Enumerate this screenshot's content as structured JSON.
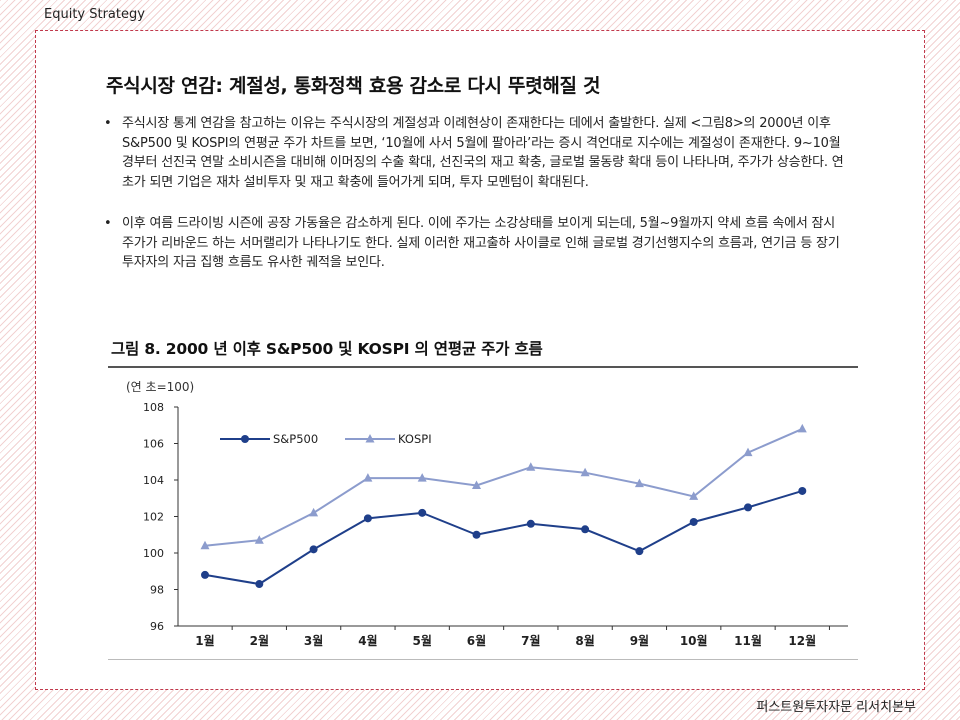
{
  "header": {
    "section": "Equity Strategy"
  },
  "footer": {
    "source": "퍼스트원투자자문 리서치본부"
  },
  "doc": {
    "title": "주식시장 연감: 계절성, 통화정책 효용 감소로 다시 뚜렷해질 것",
    "bullet_glyph": "•",
    "bullets": [
      "주식시장 통계 연감을 참고하는 이유는 주식시장의 계절성과 이례현상이 존재한다는 데에서 출발한다. 실제 <그림8>의 2000년 이후 S&P500 및 KOSPI의 연평균 주가 차트를 보면, ‘10월에 사서 5월에 팔아라’라는 증시 격언대로 지수에는 계절성이 존재한다. 9~10월경부터 선진국 연말 소비시즌을 대비해 이머징의 수출 확대, 선진국의 재고 확충, 글로벌 물동량 확대 등이 나타나며, 주가가 상승한다. 연초가 되면 기업은 재차 설비투자 및 재고 확충에 들어가게 되며, 투자 모멘텀이 확대된다.",
      "이후 여름 드라이빙 시즌에 공장 가동율은 감소하게 된다. 이에 주가는 소강상태를 보이게 되는데, 5월~9월까지 약세 흐름 속에서 잠시 주가가 리바운드 하는 서머랠리가 나타나기도 한다. 실제 이러한 재고출하 사이클로 인해 글로벌 경기선행지수의 흐름과, 연기금 등 장기 투자자의 자금 집행 흐름도 유사한 궤적을 보인다."
    ]
  },
  "figure": {
    "title": "그림 8. 2000 년 이후 S&P500 및 KOSPI 의 연평균 주가 흐름"
  },
  "chart_data": {
    "type": "line",
    "title": "그림 8. 2000 년 이후 S&P500 및 KOSPI 의 연평균 주가 흐름",
    "unit_label": "(연 초=100)",
    "categories": [
      "1월",
      "2월",
      "3월",
      "4월",
      "5월",
      "6월",
      "7월",
      "8월",
      "9월",
      "10월",
      "11월",
      "12월"
    ],
    "ylim": [
      96,
      108
    ],
    "yticks": [
      96,
      98,
      100,
      102,
      104,
      106,
      108
    ],
    "grid": false,
    "legend_position": "top-left",
    "series": [
      {
        "name": "S&P500",
        "marker": "circle",
        "color": "#1f3f8a",
        "values": [
          98.8,
          98.3,
          100.2,
          101.9,
          102.2,
          101.0,
          101.6,
          101.3,
          100.1,
          101.7,
          102.5,
          103.4
        ]
      },
      {
        "name": "KOSPI",
        "marker": "triangle",
        "color": "#8c9ccd",
        "values": [
          100.4,
          100.7,
          102.2,
          104.1,
          104.1,
          103.7,
          104.7,
          104.4,
          103.8,
          103.1,
          105.5,
          106.8
        ]
      }
    ]
  }
}
